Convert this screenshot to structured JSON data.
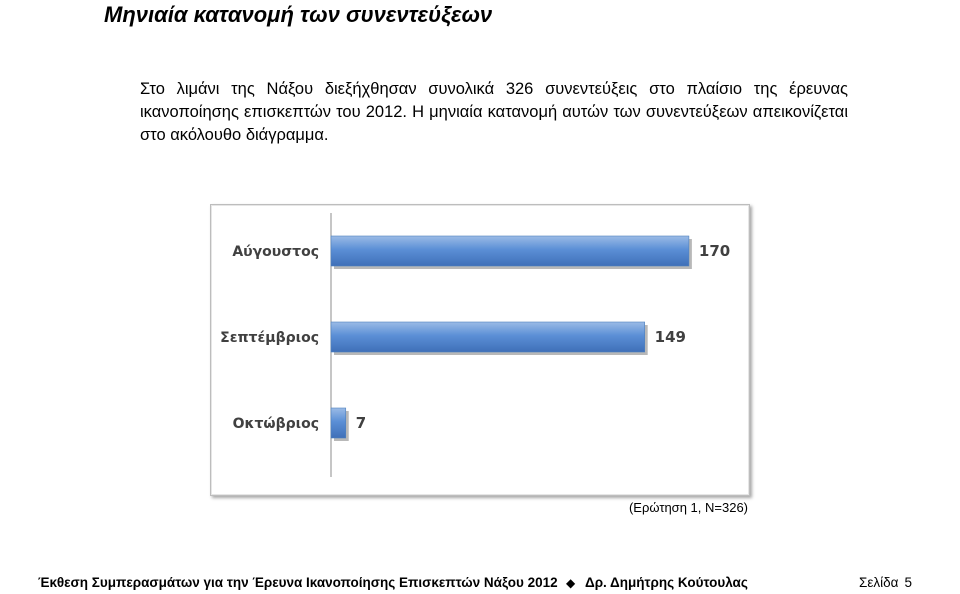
{
  "document": {
    "heading": "Μηνιαία κατανομή των συνεντεύξεων",
    "paragraph": "Στο λιμάνι της Νάξου διεξήχθησαν συνολικά 326 συνεντεύξεις στο πλαίσιο της έρευνας ικανοποίησης επισκεπτών του 2012. Η μηνιαία κατανομή αυτών των συνεντεύξεων απεικονίζεται στο ακόλουθο διάγραμμα.",
    "caption": "(Ερώτηση 1, N=326)"
  },
  "chart_data": {
    "type": "bar",
    "orientation": "horizontal",
    "categories": [
      "Αύγουστος",
      "Σεπτέμβριος",
      "Οκτώβριος"
    ],
    "values": [
      170,
      149,
      7
    ],
    "xlim": [
      0,
      190
    ],
    "grid": false,
    "legend": "none",
    "bar_color": "#4f81bd"
  },
  "footer": {
    "report_title": "Έκθεση Συμπερασμάτων για την Έρευνα Ικανοποίησης Επισκεπτών Νάξου 2012",
    "author": "Δρ. Δημήτρης Κούτουλας",
    "page_label": "Σελίδα",
    "page_number": "5",
    "separator_icon": "diamond-icon"
  }
}
